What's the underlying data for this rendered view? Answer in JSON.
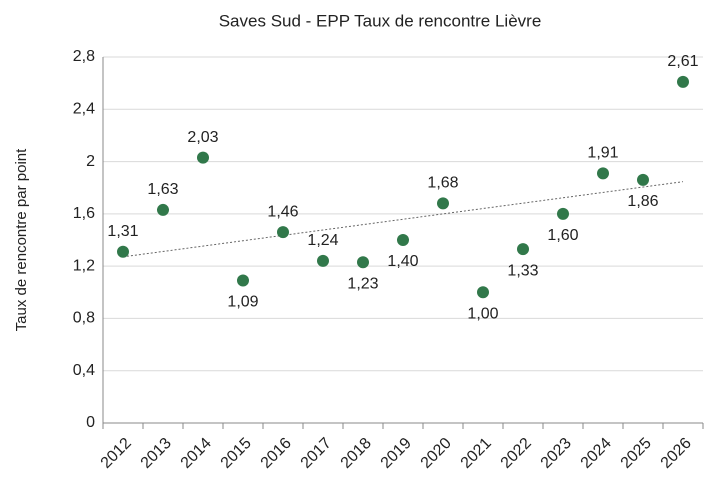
{
  "chart_data": {
    "type": "scatter",
    "title": "Saves Sud - EPP Taux de rencontre Lièvre",
    "y_label": "Taux de rencontre par point",
    "categories": [
      "2012",
      "2013",
      "2014",
      "2015",
      "2016",
      "2017",
      "2018",
      "2019",
      "2020",
      "2021",
      "2022",
      "2023",
      "2024",
      "2025",
      "2026"
    ],
    "series": [
      {
        "name": "Taux de rencontre",
        "color": "#31784a",
        "values": [
          1.31,
          1.63,
          2.03,
          1.09,
          1.46,
          1.24,
          1.23,
          1.4,
          1.68,
          1.0,
          1.33,
          1.6,
          1.91,
          1.86,
          2.61
        ],
        "value_labels": [
          "1,31",
          "1,63",
          "2,03",
          "1,09",
          "1,46",
          "1,24",
          "1,23",
          "1,40",
          "1,68",
          "1,00",
          "1,33",
          "1,60",
          "1,91",
          "1,86",
          "2,61"
        ]
      }
    ],
    "ylim": [
      0,
      2.8
    ],
    "yticks": [
      0,
      {
        "value": 0.4,
        "label": "0,4"
      },
      {
        "value": 0.8,
        "label": "0,8"
      },
      {
        "value": 1.2,
        "label": "1,2"
      },
      {
        "value": 1.6,
        "label": "1,6"
      },
      2,
      {
        "value": 2.4,
        "label": "2,4"
      },
      {
        "value": 2.8,
        "label": "2,8"
      }
    ],
    "grid": true,
    "trendline": true
  }
}
